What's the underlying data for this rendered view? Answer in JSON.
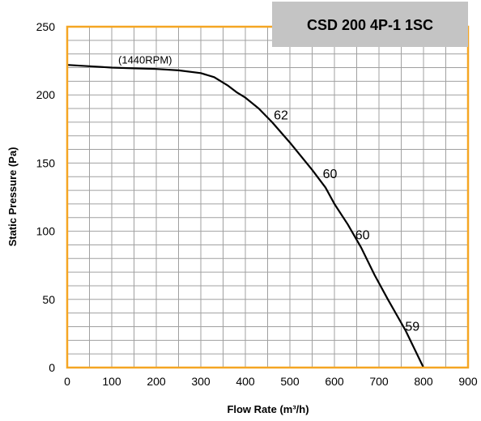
{
  "chart_data": {
    "type": "line",
    "title": "CSD 200 4P-1 1SC",
    "xlabel": "Flow Rate (m³/h)",
    "ylabel": "Static Pressure (Pa)",
    "xlim": [
      0,
      900
    ],
    "ylim": [
      0,
      250
    ],
    "xticks": [
      0,
      100,
      200,
      300,
      400,
      500,
      600,
      700,
      800,
      900
    ],
    "yticks": [
      0,
      50,
      100,
      150,
      200,
      250
    ],
    "grid": true,
    "series": [
      {
        "values": [
          {
            "x": 0,
            "y": 222
          },
          {
            "x": 50,
            "y": 221
          },
          {
            "x": 100,
            "y": 220
          },
          {
            "x": 150,
            "y": 219.5
          },
          {
            "x": 200,
            "y": 219
          },
          {
            "x": 250,
            "y": 218
          },
          {
            "x": 300,
            "y": 216
          },
          {
            "x": 330,
            "y": 213
          },
          {
            "x": 360,
            "y": 207
          },
          {
            "x": 380,
            "y": 202
          },
          {
            "x": 400,
            "y": 198
          },
          {
            "x": 430,
            "y": 190
          },
          {
            "x": 460,
            "y": 180
          },
          {
            "x": 500,
            "y": 165
          },
          {
            "x": 550,
            "y": 145
          },
          {
            "x": 580,
            "y": 132
          },
          {
            "x": 600,
            "y": 120
          },
          {
            "x": 630,
            "y": 105
          },
          {
            "x": 660,
            "y": 88
          },
          {
            "x": 690,
            "y": 68
          },
          {
            "x": 720,
            "y": 50
          },
          {
            "x": 760,
            "y": 27
          },
          {
            "x": 800,
            "y": 0
          }
        ]
      }
    ],
    "annotations": [
      {
        "text": "(1440RPM)",
        "x": 175,
        "y": 223,
        "kind": "rpm"
      },
      {
        "text": "62",
        "x": 480,
        "y": 182,
        "kind": "efficiency"
      },
      {
        "text": "60",
        "x": 590,
        "y": 139,
        "kind": "efficiency"
      },
      {
        "text": "60",
        "x": 663,
        "y": 94,
        "kind": "efficiency"
      },
      {
        "text": "59",
        "x": 775,
        "y": 27,
        "kind": "efficiency"
      }
    ],
    "colors": {
      "frame": "#F5A623",
      "grid": "#A0A0A0",
      "curve": "#000000",
      "title_box": "#C4C4C4"
    }
  }
}
